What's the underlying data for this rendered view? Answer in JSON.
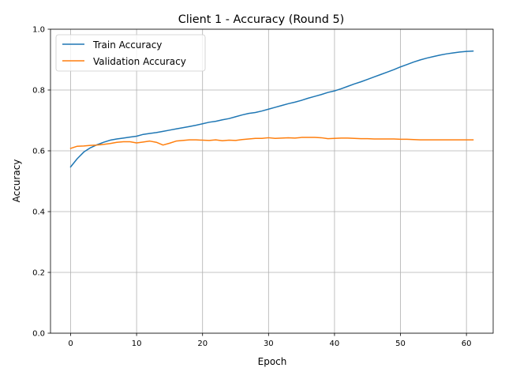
{
  "chart_data": {
    "type": "line",
    "title": "Client 1 - Accuracy (Round 5)",
    "xlabel": "Epoch",
    "ylabel": "Accuracy",
    "xlim": [
      -3.05,
      64.05
    ],
    "ylim": [
      0.0,
      1.0
    ],
    "x_ticks": [
      0,
      10,
      20,
      30,
      40,
      50,
      60
    ],
    "y_ticks": [
      0.0,
      0.2,
      0.4,
      0.6,
      0.8,
      1.0
    ],
    "x_tick_labels": [
      "0",
      "10",
      "20",
      "30",
      "40",
      "50",
      "60"
    ],
    "y_tick_labels": [
      "0.0",
      "0.2",
      "0.4",
      "0.6",
      "0.8",
      "1.0"
    ],
    "grid": true,
    "legend_position": "top-left",
    "x": [
      0,
      1,
      2,
      3,
      4,
      5,
      6,
      7,
      8,
      9,
      10,
      11,
      12,
      13,
      14,
      15,
      16,
      17,
      18,
      19,
      20,
      21,
      22,
      23,
      24,
      25,
      26,
      27,
      28,
      29,
      30,
      31,
      32,
      33,
      34,
      35,
      36,
      37,
      38,
      39,
      40,
      41,
      42,
      43,
      44,
      45,
      46,
      47,
      48,
      49,
      50,
      51,
      52,
      53,
      54,
      55,
      56,
      57,
      58,
      59,
      60,
      61
    ],
    "series": [
      {
        "name": "Train Accuracy",
        "color": "#1f77b4",
        "values": [
          0.547,
          0.574,
          0.596,
          0.61,
          0.62,
          0.628,
          0.635,
          0.639,
          0.642,
          0.645,
          0.648,
          0.654,
          0.657,
          0.66,
          0.664,
          0.668,
          0.672,
          0.676,
          0.68,
          0.684,
          0.689,
          0.694,
          0.697,
          0.702,
          0.706,
          0.712,
          0.718,
          0.723,
          0.726,
          0.731,
          0.737,
          0.743,
          0.749,
          0.755,
          0.76,
          0.766,
          0.773,
          0.779,
          0.785,
          0.792,
          0.797,
          0.804,
          0.812,
          0.82,
          0.827,
          0.835,
          0.843,
          0.851,
          0.859,
          0.867,
          0.876,
          0.884,
          0.892,
          0.899,
          0.905,
          0.91,
          0.915,
          0.919,
          0.922,
          0.925,
          0.927,
          0.928
        ]
      },
      {
        "name": "Validation Accuracy",
        "color": "#ff7f0e",
        "values": [
          0.608,
          0.615,
          0.616,
          0.618,
          0.619,
          0.621,
          0.624,
          0.628,
          0.63,
          0.63,
          0.626,
          0.629,
          0.632,
          0.628,
          0.619,
          0.625,
          0.632,
          0.634,
          0.636,
          0.636,
          0.635,
          0.634,
          0.636,
          0.633,
          0.635,
          0.634,
          0.637,
          0.639,
          0.641,
          0.641,
          0.643,
          0.641,
          0.642,
          0.643,
          0.642,
          0.644,
          0.644,
          0.644,
          0.643,
          0.64,
          0.641,
          0.642,
          0.642,
          0.641,
          0.64,
          0.64,
          0.639,
          0.639,
          0.639,
          0.639,
          0.638,
          0.638,
          0.637,
          0.636,
          0.636,
          0.636,
          0.636,
          0.636,
          0.636,
          0.636,
          0.636,
          0.636
        ]
      }
    ]
  }
}
